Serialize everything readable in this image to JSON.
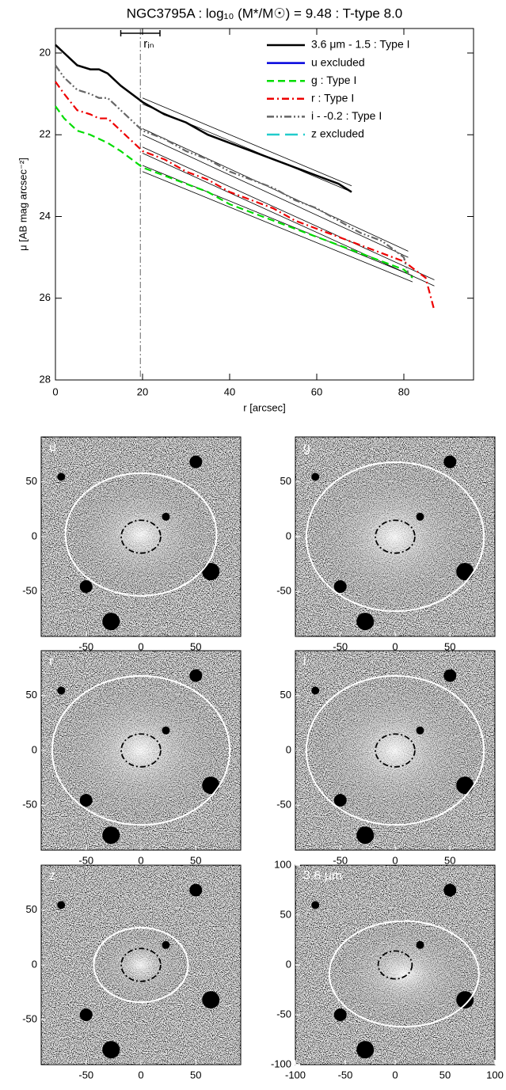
{
  "chart_data": [
    {
      "type": "line",
      "title": "NGC3795A : log₁₀ (M*/M☉) = 9.48 : T-type 8.0",
      "y_label": "μ [AB mag arcsec⁻²]",
      "x_label": "r [arcsec]",
      "xlim": [
        0,
        96
      ],
      "xticks": [
        0,
        20,
        40,
        60,
        80
      ],
      "ylim": [
        19.4,
        28
      ],
      "yticks": [
        20,
        22,
        24,
        26,
        28
      ],
      "y_inverted": true,
      "series": [
        {
          "name": "3.6 μm - 1.5 : Type I",
          "color": "#000000",
          "style": "solid",
          "x": [
            0,
            2,
            5,
            8,
            10,
            12,
            15,
            20,
            25,
            30,
            35,
            40,
            45,
            50,
            55,
            60,
            65,
            68
          ],
          "values": [
            19.8,
            20.0,
            20.3,
            20.4,
            20.4,
            20.5,
            20.8,
            21.2,
            21.5,
            21.7,
            22.0,
            22.2,
            22.4,
            22.6,
            22.8,
            23.0,
            23.2,
            23.4
          ]
        },
        {
          "name": "u excluded",
          "color": "#0000dd",
          "style": "solid",
          "x": [],
          "values": []
        },
        {
          "name": "g : Type I",
          "color": "#00dd00",
          "style": "dashed",
          "x": [
            0,
            2,
            5,
            8,
            10,
            12,
            15,
            20,
            25,
            30,
            35,
            40,
            45,
            50,
            55,
            60,
            65,
            70,
            75,
            80,
            82
          ],
          "values": [
            21.3,
            21.6,
            21.9,
            22.0,
            22.1,
            22.2,
            22.4,
            22.8,
            23.0,
            23.2,
            23.4,
            23.7,
            23.9,
            24.1,
            24.3,
            24.5,
            24.7,
            24.9,
            25.1,
            25.3,
            25.5
          ]
        },
        {
          "name": "r : Type I",
          "color": "#ee0000",
          "style": "dashdot",
          "x": [
            0,
            2,
            5,
            8,
            10,
            12,
            15,
            20,
            25,
            30,
            35,
            40,
            45,
            50,
            55,
            60,
            65,
            70,
            75,
            80,
            85,
            87
          ],
          "values": [
            20.7,
            21.0,
            21.4,
            21.5,
            21.6,
            21.6,
            21.9,
            22.4,
            22.6,
            22.9,
            23.1,
            23.4,
            23.6,
            23.8,
            24.1,
            24.3,
            24.5,
            24.7,
            24.9,
            25.1,
            25.5,
            26.3
          ]
        },
        {
          "name": "i - -0.2 : Type I",
          "color": "#666666",
          "style": "dashdotdot",
          "x": [
            0,
            2,
            5,
            8,
            10,
            12,
            15,
            20,
            25,
            30,
            35,
            40,
            45,
            50,
            55,
            60,
            65,
            70,
            75,
            80,
            81
          ],
          "values": [
            20.3,
            20.6,
            20.9,
            21.0,
            21.1,
            21.1,
            21.4,
            21.9,
            22.1,
            22.4,
            22.6,
            22.9,
            23.1,
            23.3,
            23.6,
            23.8,
            24.1,
            24.4,
            24.6,
            25.0,
            25.4
          ]
        },
        {
          "name": "z excluded",
          "color": "#22cccc",
          "style": "longdash",
          "x": [],
          "values": []
        }
      ],
      "fits": [
        {
          "x": [
            20,
            68
          ],
          "y": [
            21.1,
            23.25
          ]
        },
        {
          "x": [
            20,
            68
          ],
          "y": [
            21.25,
            23.4
          ]
        },
        {
          "x": [
            20,
            81
          ],
          "y": [
            21.85,
            24.85
          ]
        },
        {
          "x": [
            20,
            81
          ],
          "y": [
            22.0,
            25.0
          ]
        },
        {
          "x": [
            20,
            87
          ],
          "y": [
            22.3,
            25.55
          ]
        },
        {
          "x": [
            20,
            87
          ],
          "y": [
            22.45,
            25.7
          ]
        },
        {
          "x": [
            20,
            82
          ],
          "y": [
            22.75,
            25.45
          ]
        },
        {
          "x": [
            20,
            82
          ],
          "y": [
            22.9,
            25.6
          ]
        }
      ],
      "r_in": {
        "label": "rᵢₙ",
        "value": 19.5,
        "range": [
          15,
          24
        ]
      }
    },
    {
      "type": "image",
      "label": "u",
      "xlim": [
        -91,
        91
      ],
      "ylim": [
        -91,
        91
      ],
      "xticks": [
        -50,
        0,
        50
      ],
      "yticks": [
        -50,
        0,
        50
      ],
      "ellipse": {
        "cx": 0,
        "cy": 2,
        "rx": 69,
        "ry": 56
      },
      "inner": {
        "cx": 0,
        "cy": 0,
        "rx": 18,
        "ry": 15
      }
    },
    {
      "type": "image",
      "label": "g",
      "xlim": [
        -91,
        91
      ],
      "ylim": [
        -91,
        91
      ],
      "xticks": [
        -50,
        0,
        50
      ],
      "yticks": [
        -50,
        0,
        50
      ],
      "ellipse": {
        "cx": 0,
        "cy": 0,
        "rx": 81,
        "ry": 68
      },
      "inner": {
        "cx": 0,
        "cy": 0,
        "rx": 18,
        "ry": 15
      }
    },
    {
      "type": "image",
      "label": "r",
      "xlim": [
        -91,
        91
      ],
      "ylim": [
        -91,
        91
      ],
      "xticks": [
        -50,
        0,
        50
      ],
      "yticks": [
        -50,
        0,
        50
      ],
      "ellipse": {
        "cx": 0,
        "cy": 0,
        "rx": 81,
        "ry": 68
      },
      "inner": {
        "cx": 0,
        "cy": 0,
        "rx": 18,
        "ry": 15
      }
    },
    {
      "type": "image",
      "label": "i",
      "xlim": [
        -91,
        91
      ],
      "ylim": [
        -91,
        91
      ],
      "xticks": [
        -50,
        0,
        50
      ],
      "yticks": [
        -50,
        0,
        50
      ],
      "ellipse": {
        "cx": 0,
        "cy": 0,
        "rx": 81,
        "ry": 68
      },
      "inner": {
        "cx": 0,
        "cy": 0,
        "rx": 18,
        "ry": 15
      }
    },
    {
      "type": "image",
      "label": "z",
      "xlim": [
        -91,
        91
      ],
      "ylim": [
        -91,
        91
      ],
      "xticks": [
        -50,
        0,
        50
      ],
      "yticks": [
        -50,
        0,
        50
      ],
      "ellipse": {
        "cx": 0,
        "cy": 0,
        "rx": 43,
        "ry": 34
      },
      "inner": {
        "cx": 0,
        "cy": 0,
        "rx": 18,
        "ry": 15
      }
    },
    {
      "type": "image",
      "label": "3.6 μm",
      "xlim": [
        -100,
        100
      ],
      "ylim": [
        -100,
        100
      ],
      "xticks": [
        -100,
        -50,
        0,
        50,
        100
      ],
      "yticks": [
        -100,
        -50,
        0,
        50,
        100
      ],
      "ellipse": {
        "cx": 9,
        "cy": -9,
        "rx": 75,
        "ry": 53
      },
      "inner": {
        "cx": 0,
        "cy": 0,
        "rx": 17,
        "ry": 14
      }
    }
  ]
}
